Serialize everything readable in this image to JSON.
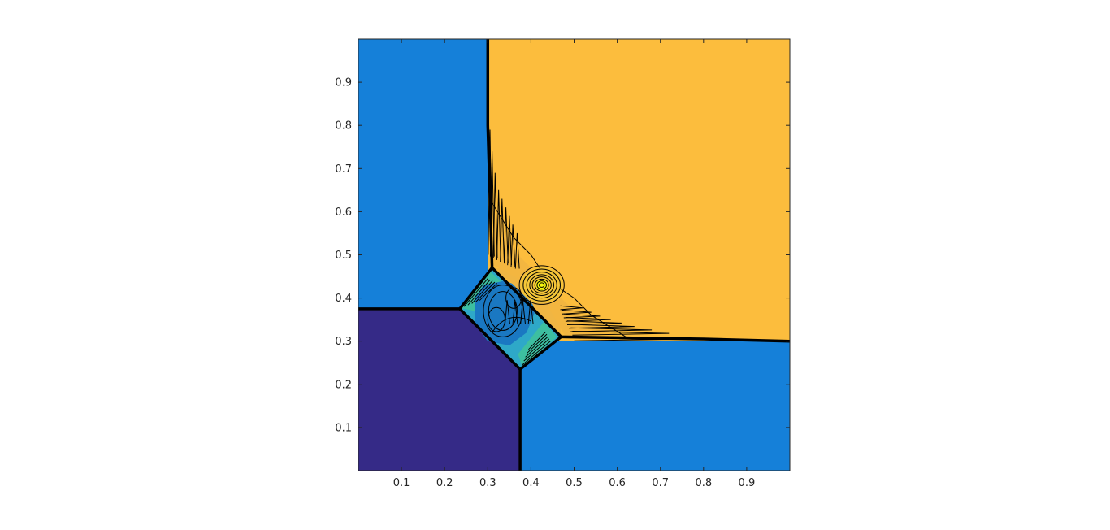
{
  "chart_data": {
    "type": "contour",
    "title": "",
    "xlabel": "",
    "ylabel": "",
    "xlim": [
      0,
      1
    ],
    "ylim": [
      0,
      1
    ],
    "xticks": [
      0.1,
      0.2,
      0.3,
      0.4,
      0.5,
      0.6,
      0.7,
      0.8,
      0.9
    ],
    "yticks": [
      0.1,
      0.2,
      0.3,
      0.4,
      0.5,
      0.6,
      0.7,
      0.8,
      0.9
    ],
    "grid": false,
    "colorbar": false,
    "colors": {
      "quadrant_top_left": "#1580d9",
      "quadrant_top_right": "#fcbd3d",
      "quadrant_bottom_left": "#352a87",
      "quadrant_bottom_right": "#1580d9",
      "interaction_mid": "#2ea8c8",
      "interaction_teal": "#3dbfa0",
      "peak": "#f8f90f",
      "contour_line": "#000000"
    },
    "regions": [
      {
        "name": "top-left",
        "x": [
          0,
          0.3
        ],
        "y": [
          0.375,
          1
        ]
      },
      {
        "name": "top-right",
        "x": [
          0.3,
          1
        ],
        "y": [
          0.3,
          1
        ]
      },
      {
        "name": "bottom-left",
        "x": [
          0,
          0.375
        ],
        "y": [
          0,
          0.375
        ]
      },
      {
        "name": "bottom-right",
        "x": [
          0.375,
          1
        ],
        "y": [
          0,
          0.3
        ]
      }
    ],
    "shock_lines": [
      {
        "name": "vertical-top",
        "points": [
          [
            0.3,
            1
          ],
          [
            0.3,
            0.8
          ],
          [
            0.31,
            0.47
          ]
        ]
      },
      {
        "name": "horizontal-right",
        "points": [
          [
            1,
            0.3
          ],
          [
            0.8,
            0.305
          ],
          [
            0.47,
            0.31
          ]
        ]
      },
      {
        "name": "horizontal-left",
        "points": [
          [
            0,
            0.375
          ],
          [
            0.235,
            0.375
          ]
        ]
      },
      {
        "name": "vertical-bottom",
        "points": [
          [
            0.375,
            0
          ],
          [
            0.375,
            0.235
          ]
        ]
      }
    ],
    "interaction_region": [
      [
        0.235,
        0.375
      ],
      [
        0.31,
        0.47
      ],
      [
        0.47,
        0.31
      ],
      [
        0.375,
        0.235
      ]
    ],
    "peak_location": [
      0.425,
      0.43
    ]
  }
}
